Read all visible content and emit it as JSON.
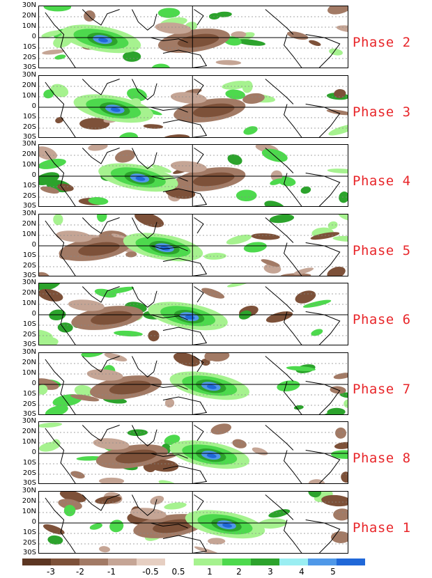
{
  "latitude_labels": [
    "30N",
    "20N",
    "10N",
    "0",
    "10S",
    "20S",
    "30S"
  ],
  "panels": [
    {
      "label": "Phase 2",
      "wet_lon": 0.2,
      "dry_lon": 0.5
    },
    {
      "label": "Phase 3",
      "wet_lon": 0.24,
      "dry_lon": 0.55
    },
    {
      "label": "Phase 4",
      "wet_lon": 0.32,
      "dry_lon": 0.55
    },
    {
      "label": "Phase 5",
      "wet_lon": 0.4,
      "dry_lon": 0.18
    },
    {
      "label": "Phase 6",
      "wet_lon": 0.48,
      "dry_lon": 0.22
    },
    {
      "label": "Phase 7",
      "wet_lon": 0.55,
      "dry_lon": 0.28
    },
    {
      "label": "Phase 8",
      "wet_lon": 0.55,
      "dry_lon": 0.3
    },
    {
      "label": "Phase 1",
      "wet_lon": 0.6,
      "dry_lon": 0.42
    }
  ],
  "colorbar": {
    "colors": [
      "#5c3622",
      "#7d5139",
      "#a27a65",
      "#c5a595",
      "#e6cfc2",
      "#ffffff",
      "#a6f28f",
      "#4dd94d",
      "#2ca32c",
      "#9aeef2",
      "#4f98e8",
      "#2068d8"
    ],
    "tick_labels": [
      "-3",
      "-2",
      "-1",
      "-0.5",
      "0.5",
      "1",
      "2",
      "3",
      "4",
      "5"
    ]
  }
}
